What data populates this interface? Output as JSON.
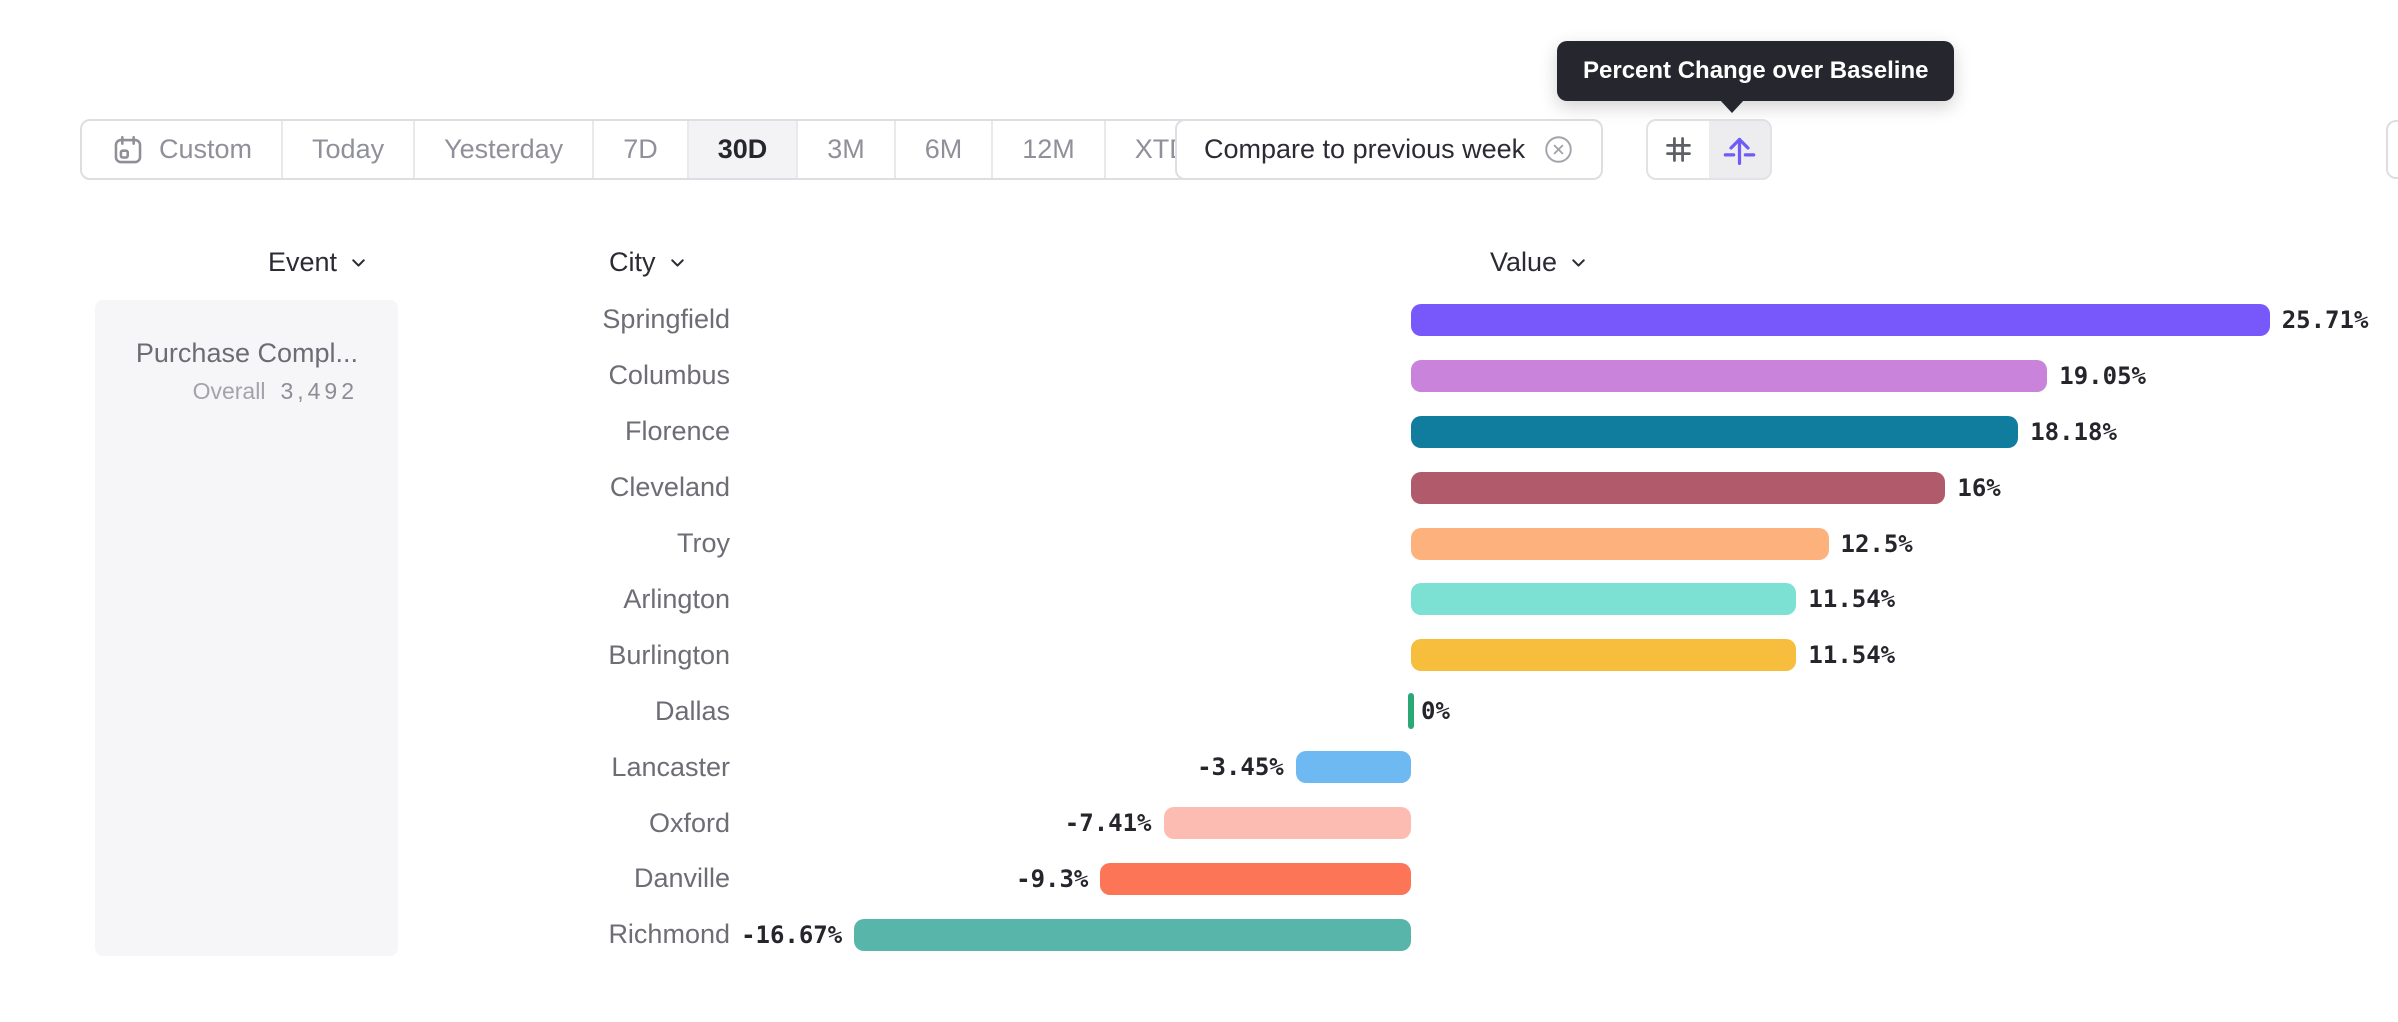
{
  "tooltip": {
    "text": "Percent Change over Baseline"
  },
  "toolbar": {
    "date_ranges": [
      {
        "label": "Custom",
        "icon": "calendar-icon"
      },
      {
        "label": "Today"
      },
      {
        "label": "Yesterday"
      },
      {
        "label": "7D"
      },
      {
        "label": "30D",
        "selected": true
      },
      {
        "label": "3M"
      },
      {
        "label": "6M"
      },
      {
        "label": "12M"
      },
      {
        "label": "XTD",
        "icon_after": "chevron-down-icon"
      }
    ],
    "compare_label": "Compare to previous week",
    "view_toggle": [
      {
        "icon": "hash-icon",
        "selected": false
      },
      {
        "icon": "baseline-arrow-icon",
        "selected": true
      }
    ]
  },
  "columns": {
    "event": {
      "label": "Event"
    },
    "city": {
      "label": "City"
    },
    "value": {
      "label": "Value"
    }
  },
  "event_panel": {
    "event_name": "Purchase Compl...",
    "overall_label": "Overall",
    "overall_value": "3,492"
  },
  "chart_data": {
    "type": "bar",
    "orientation": "horizontal",
    "title": "Percent Change over Baseline",
    "unit": "%",
    "baseline": 0,
    "xlim": [
      -16.67,
      25.71
    ],
    "grid": false,
    "categories": [
      "Springfield",
      "Columbus",
      "Florence",
      "Cleveland",
      "Troy",
      "Arlington",
      "Burlington",
      "Dallas",
      "Lancaster",
      "Oxford",
      "Danville",
      "Richmond"
    ],
    "values": [
      25.71,
      19.05,
      18.18,
      16,
      12.5,
      11.54,
      11.54,
      0,
      -3.45,
      -7.41,
      -9.3,
      -16.67
    ],
    "value_labels": [
      "25.71%",
      "19.05%",
      "18.18%",
      "16%",
      "12.5%",
      "11.54%",
      "11.54%",
      "0%",
      "-3.45%",
      "-7.41%",
      "-9.3%",
      "-16.67%"
    ],
    "colors": [
      "#7857fb",
      "#c983db",
      "#117d9e",
      "#b05a6c",
      "#fdb27e",
      "#7ce0d3",
      "#f7bd3c",
      "#2aa876",
      "#6fb9f2",
      "#fcbcb2",
      "#fc7557",
      "#57b5aa"
    ]
  },
  "ui_colors": {
    "accent_purple": "#6f5bf5",
    "tooltip_bg": "#26262e",
    "selected_bg": "#f3f3f5",
    "border": "#dedee2",
    "muted_text": "#90909a",
    "dark_text": "#2b2b33"
  }
}
